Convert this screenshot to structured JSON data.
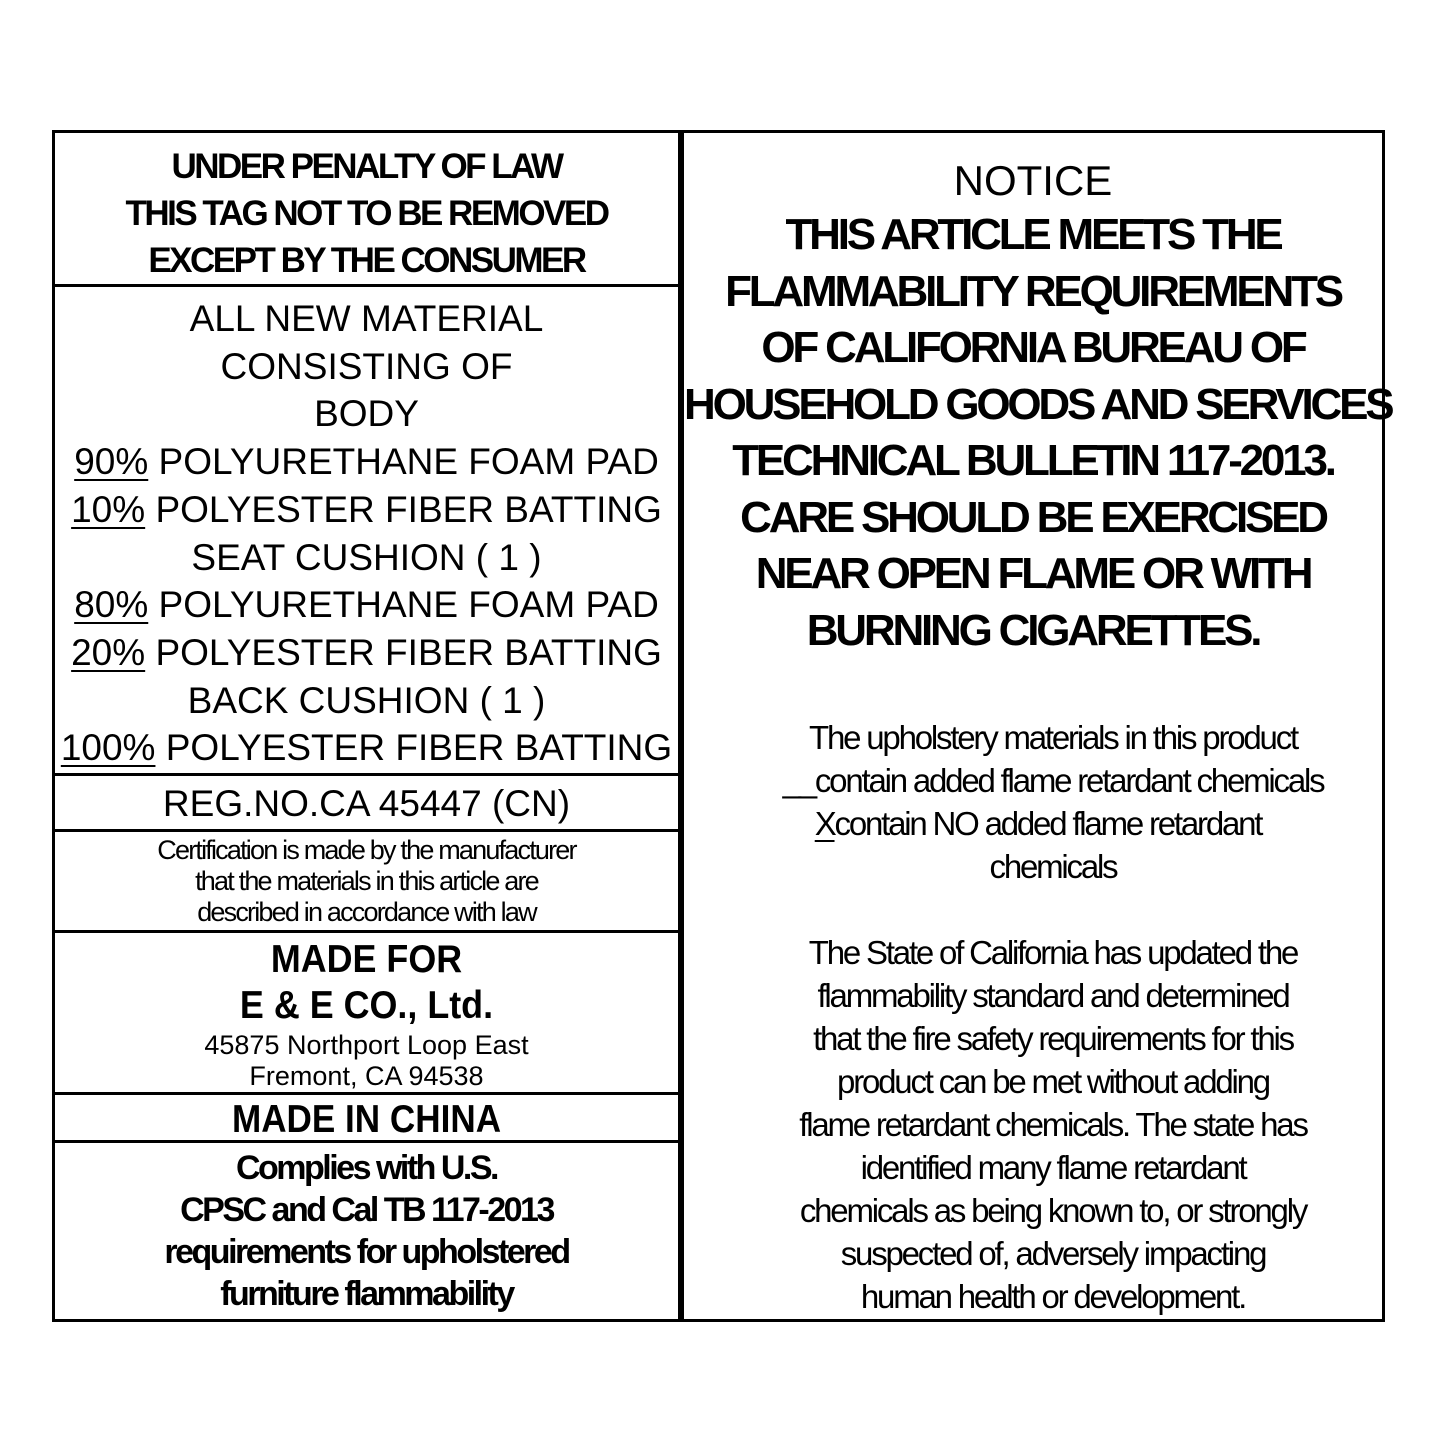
{
  "left": {
    "warning": [
      "UNDER PENALTY OF LAW",
      "THIS TAG NOT TO BE REMOVED",
      "EXCEPT BY THE CONSUMER"
    ],
    "materials_header": [
      "ALL NEW MATERIAL",
      "CONSISTING OF"
    ],
    "components": [
      {
        "name": "BODY",
        "items": [
          {
            "pct": "90%",
            "text": "POLYURETHANE FOAM PAD"
          },
          {
            "pct": "10%",
            "text": "POLYESTER FIBER BATTING"
          }
        ]
      },
      {
        "name": "SEAT CUSHION ( 1 )",
        "items": [
          {
            "pct": "80%",
            "text": "POLYURETHANE FOAM PAD"
          },
          {
            "pct": "20%",
            "text": "POLYESTER FIBER BATTING"
          }
        ]
      },
      {
        "name": "BACK CUSHION ( 1 )",
        "items": [
          {
            "pct": "100%",
            "text": "POLYESTER FIBER BATTING"
          }
        ]
      }
    ],
    "reg_no": "REG.NO.CA 45447 (CN)",
    "certification": [
      "Certification is made by the manufacturer",
      "that the materials in this article are",
      "described in accordance with law"
    ],
    "made_for": "MADE FOR",
    "company": "E & E CO., Ltd.",
    "address": [
      "45875 Northport Loop East",
      "Fremont, CA 94538"
    ],
    "origin": "MADE IN CHINA",
    "compliance": [
      "Complies with U.S.",
      "CPSC and Cal TB 117-2013",
      "requirements for upholstered",
      "furniture flammability"
    ]
  },
  "right": {
    "notice_title": "NOTICE",
    "notice": [
      "THIS ARTICLE MEETS THE",
      "FLAMMABILITY REQUIREMENTS",
      "OF CALIFORNIA BUREAU OF",
      "HOUSEHOLD GOODS AND SERVICES",
      "TECHNICAL BULLETIN 117-2013.",
      "CARE SHOULD BE EXERCISED",
      "NEAR OPEN FLAME OR WITH",
      "BURNING CIGARETTES."
    ],
    "disclosure_intro": "The upholstery materials in this product",
    "option_contains": {
      "mark": "__",
      "text": "contain added flame retardant chemicals"
    },
    "option_no": {
      "mark": "X",
      "text": "contain NO added flame retardant"
    },
    "option_no_cont": "chemicals",
    "statement": [
      "The State of California has updated the",
      "flammability  standard and determined",
      "that the fire safety requirements for this",
      "product can be met without adding",
      "flame retardant chemicals. The state has",
      "identified many flame retardant",
      "chemicals as being known to, or strongly",
      "suspected of, adversely impacting",
      "human health or development."
    ]
  }
}
